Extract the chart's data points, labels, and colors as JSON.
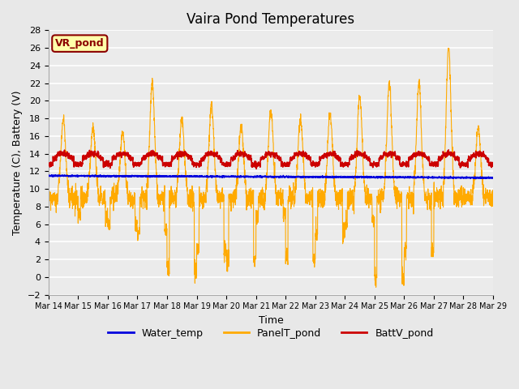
{
  "title": "Vaira Pond Temperatures",
  "xlabel": "Time",
  "ylabel": "Temperature (C), Battery (V)",
  "site_label": "VR_pond",
  "ylim": [
    -2,
    28
  ],
  "yticks": [
    -2,
    0,
    2,
    4,
    6,
    8,
    10,
    12,
    14,
    16,
    18,
    20,
    22,
    24,
    26,
    28
  ],
  "x_tick_labels": [
    "Mar 14",
    "Mar 15",
    "Mar 16",
    "Mar 17",
    "Mar 18",
    "Mar 19",
    "Mar 20",
    "Mar 21",
    "Mar 22",
    "Mar 23",
    "Mar 24",
    "Mar 25",
    "Mar 26",
    "Mar 27",
    "Mar 28",
    "Mar 29"
  ],
  "water_temp_color": "#0000dd",
  "panel_temp_color": "#ffaa00",
  "batt_color": "#cc0000",
  "bg_color": "#e8e8e8",
  "plot_bg_color": "#ebebeb",
  "legend_labels": [
    "Water_temp",
    "PanelT_pond",
    "BattV_pond"
  ],
  "title_fontsize": 12,
  "axis_fontsize": 9,
  "tick_fontsize": 8
}
